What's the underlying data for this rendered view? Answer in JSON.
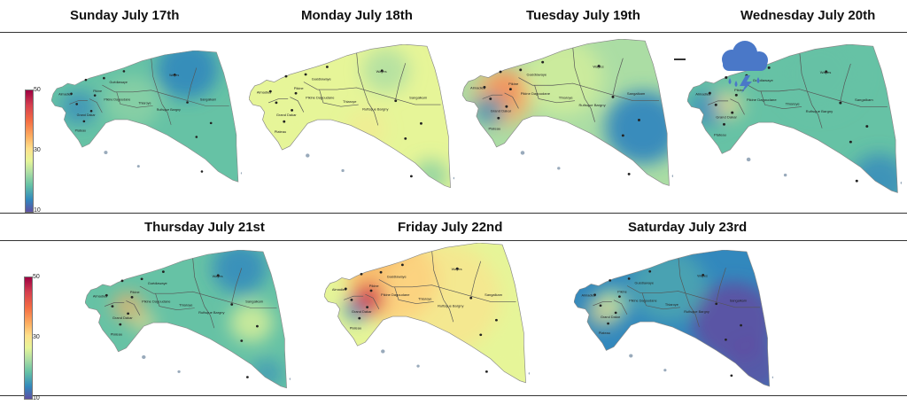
{
  "days": [
    {
      "title": "Sunday July 17th",
      "scheme": "sun"
    },
    {
      "title": "Monday July 18th",
      "scheme": "mon"
    },
    {
      "title": "Tuesday July 19th",
      "scheme": "tue"
    },
    {
      "title": "Wednesday July 20th",
      "scheme": "wed"
    },
    {
      "title": "Thursday July 21st",
      "scheme": "thu"
    },
    {
      "title": "Friday July 22nd",
      "scheme": "fri"
    },
    {
      "title": "Saturday July 23rd",
      "scheme": "sat"
    }
  ],
  "colorbar": {
    "max": "50",
    "mid": "30",
    "min": "10"
  },
  "place_labels": {
    "wayes": "Wayes",
    "sangalkam": "Sangalkam",
    "rufisque": "Rufisque Bargny",
    "thiaroye": "Thiaroye",
    "guediawaye": "Guédiawaye",
    "almadies": "Almadies",
    "pikine": "Pikine",
    "dagoudane": "Pikine Dagoudane",
    "grand_dakar": "Grand Dakar",
    "plateau": "Plateau"
  },
  "weather_icon": "rain-thunder-cloud-icon",
  "colors": {
    "purple": "#5e4fa2",
    "blue": "#3288bd",
    "teal": "#66c2a5",
    "green": "#abdda4",
    "lime": "#e6f598",
    "yellow": "#fee08b",
    "orange": "#fdae61",
    "red": "#d53e4f",
    "icon_blue": "#4a78c8"
  }
}
